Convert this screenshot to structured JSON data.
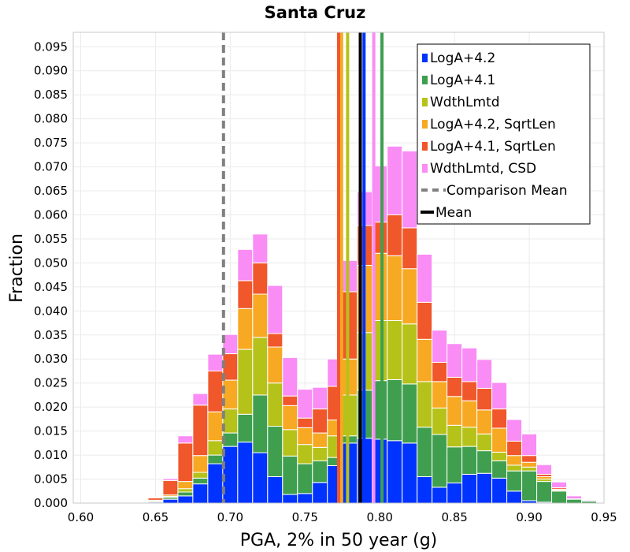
{
  "chart_data": {
    "type": "bar",
    "stacked": true,
    "title": "Santa Cruz",
    "xlabel": "PGA, 2% in 50 year (g)",
    "ylabel": "Fraction",
    "xlim": [
      0.595,
      0.95
    ],
    "ylim": [
      0.0,
      0.098
    ],
    "grid": true,
    "legend_position": "top-right",
    "x_ticks": [
      "0.60",
      "0.65",
      "0.70",
      "0.75",
      "0.80",
      "0.85",
      "0.90",
      "0.95"
    ],
    "y_ticks": [
      "0.000",
      "0.005",
      "0.010",
      "0.015",
      "0.020",
      "0.025",
      "0.030",
      "0.035",
      "0.040",
      "0.045",
      "0.050",
      "0.055",
      "0.060",
      "0.065",
      "0.070",
      "0.075",
      "0.080",
      "0.085",
      "0.090",
      "0.095"
    ],
    "bin_width": 0.01,
    "bin_starts": [
      0.595,
      0.605,
      0.615,
      0.625,
      0.635,
      0.645,
      0.655,
      0.665,
      0.675,
      0.685,
      0.695,
      0.705,
      0.715,
      0.725,
      0.735,
      0.745,
      0.755,
      0.765,
      0.775,
      0.785,
      0.795,
      0.805,
      0.815,
      0.825,
      0.835,
      0.845,
      0.855,
      0.865,
      0.875,
      0.885,
      0.895,
      0.905,
      0.915,
      0.925,
      0.935,
      0.945
    ],
    "series": [
      {
        "name": "LogA+4.2",
        "color": "#0033ff",
        "values": [
          0,
          0,
          0,
          0,
          0,
          0.0002,
          0.0008,
          0.0015,
          0.004,
          0.0082,
          0.0118,
          0.0127,
          0.0105,
          0.0055,
          0.0018,
          0.002,
          0.0043,
          0.0078,
          0.0125,
          0.0135,
          0.0133,
          0.013,
          0.0125,
          0.0055,
          0.0033,
          0.0042,
          0.006,
          0.0062,
          0.0052,
          0.0025,
          0.0005,
          0.0002,
          0,
          0,
          0,
          0
        ]
      },
      {
        "name": "LogA+4.1",
        "color": "#3f9f4f",
        "values": [
          0,
          0,
          0,
          0,
          0,
          0.0002,
          0.0004,
          0.0008,
          0.0012,
          0.0018,
          0.0028,
          0.0058,
          0.012,
          0.0105,
          0.008,
          0.0062,
          0.0045,
          0.0017,
          0.0015,
          0.01,
          0.0122,
          0.0127,
          0.0123,
          0.0103,
          0.011,
          0.0075,
          0.0058,
          0.0047,
          0.0036,
          0.0042,
          0.0062,
          0.0043,
          0.0025,
          0.0008,
          0.0004,
          0
        ]
      },
      {
        "name": "WdthLmtd",
        "color": "#b5c21a",
        "values": [
          0,
          0,
          0,
          0,
          0,
          0.0001,
          0.0002,
          0.0007,
          0.0012,
          0.003,
          0.005,
          0.0135,
          0.012,
          0.009,
          0.0055,
          0.004,
          0.0028,
          0.0045,
          0.0085,
          0.012,
          0.0125,
          0.0123,
          0.0125,
          0.0095,
          0.0055,
          0.0045,
          0.004,
          0.0035,
          0.0018,
          0.0012,
          0.0008,
          0.0005,
          0.0002,
          0,
          0,
          0
        ]
      },
      {
        "name": "LogA+4.2, SqrtLen",
        "color": "#f7a923",
        "values": [
          0,
          0,
          0,
          0,
          0,
          0.0001,
          0.0003,
          0.0015,
          0.0035,
          0.006,
          0.006,
          0.0085,
          0.009,
          0.0075,
          0.005,
          0.0035,
          0.003,
          0.0033,
          0.0075,
          0.014,
          0.014,
          0.0135,
          0.0115,
          0.0088,
          0.0055,
          0.006,
          0.0055,
          0.005,
          0.005,
          0.002,
          0.001,
          0.0005,
          0.0002,
          0,
          0,
          0
        ]
      },
      {
        "name": "LogA+4.1, SqrtLen",
        "color": "#f0572a",
        "values": [
          0,
          0,
          0,
          0,
          0,
          0.0005,
          0.003,
          0.008,
          0.0105,
          0.0085,
          0.0055,
          0.0058,
          0.0065,
          0.0028,
          0.002,
          0.002,
          0.005,
          0.007,
          0.014,
          0.0083,
          0.0065,
          0.0085,
          0.0085,
          0.0077,
          0.004,
          0.004,
          0.004,
          0.0045,
          0.004,
          0.003,
          0.0014,
          0.0005,
          0.0003,
          0.0001,
          0,
          0
        ]
      },
      {
        "name": "WdthLmtd, CSD",
        "color": "#f98cf5",
        "values": [
          0,
          0,
          0,
          0,
          0,
          0.0001,
          0.0004,
          0.0015,
          0.0024,
          0.0035,
          0.004,
          0.0065,
          0.006,
          0.01,
          0.008,
          0.006,
          0.0045,
          0.0057,
          0.0065,
          0.007,
          0.0117,
          0.0143,
          0.016,
          0.01,
          0.0067,
          0.007,
          0.007,
          0.006,
          0.0055,
          0.0045,
          0.0045,
          0.002,
          0.0012,
          0.0006,
          0.0002,
          0
        ]
      }
    ],
    "comparison_mean": {
      "name": "Comparison Mean",
      "x": 0.6955,
      "color": "#808080",
      "style": "dashed"
    },
    "mean": {
      "name": "Mean",
      "x": 0.787,
      "color": "#000000"
    },
    "series_means": [
      {
        "series": "LogA+4.2",
        "x": 0.7895,
        "color": "#0033ff"
      },
      {
        "series": "LogA+4.1",
        "x": 0.8015,
        "color": "#3f9f4f"
      },
      {
        "series": "WdthLmtd",
        "x": 0.7785,
        "color": "#b5c21a"
      },
      {
        "series": "LogA+4.2, SqrtLen",
        "x": 0.7745,
        "color": "#f7a923"
      },
      {
        "series": "LogA+4.1, SqrtLen",
        "x": 0.7725,
        "color": "#f0572a"
      },
      {
        "series": "WdthLmtd, CSD",
        "x": 0.796,
        "color": "#f98cf5"
      }
    ]
  }
}
